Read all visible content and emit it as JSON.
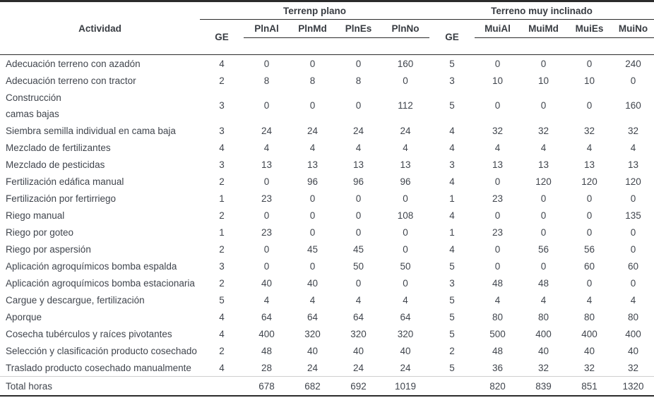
{
  "table": {
    "activity_header": "Actividad",
    "groups": [
      {
        "label": "Terrenp plano",
        "ge": "GE",
        "subcols": [
          "PlnAl",
          "PlnMd",
          "PlnEs",
          "PlnNo"
        ]
      },
      {
        "label": "Terreno muy inclinado",
        "ge": "GE",
        "subcols": [
          "MuiAl",
          "MuiMd",
          "MuiEs",
          "MuiNo"
        ]
      }
    ],
    "rows": [
      {
        "actividad": "Adecuación terreno con azadón",
        "values": [
          "4",
          "0",
          "0",
          "0",
          "160",
          "5",
          "0",
          "0",
          "0",
          "240"
        ]
      },
      {
        "actividad": "Adecuación terreno con tractor",
        "values": [
          "2",
          "8",
          "8",
          "8",
          "0",
          "3",
          "10",
          "10",
          "10",
          "0"
        ]
      },
      {
        "actividad": "Construcción\ncamas bajas",
        "values": [
          "3",
          "0",
          "0",
          "0",
          "112",
          "5",
          "0",
          "0",
          "0",
          "160"
        ],
        "double": true
      },
      {
        "actividad": "Siembra semilla individual en cama baja",
        "values": [
          "3",
          "24",
          "24",
          "24",
          "24",
          "4",
          "32",
          "32",
          "32",
          "32"
        ]
      },
      {
        "actividad": "Mezclado de fertilizantes",
        "values": [
          "4",
          "4",
          "4",
          "4",
          "4",
          "4",
          "4",
          "4",
          "4",
          "4"
        ]
      },
      {
        "actividad": "Mezclado de pesticidas",
        "values": [
          "3",
          "13",
          "13",
          "13",
          "13",
          "3",
          "13",
          "13",
          "13",
          "13"
        ]
      },
      {
        "actividad": "Fertilización edáfica manual",
        "values": [
          "2",
          "0",
          "96",
          "96",
          "96",
          "4",
          "0",
          "120",
          "120",
          "120"
        ]
      },
      {
        "actividad": "Fertilización por fertirriego",
        "values": [
          "1",
          "23",
          "0",
          "0",
          "0",
          "1",
          "23",
          "0",
          "0",
          "0"
        ]
      },
      {
        "actividad": "Riego manual",
        "values": [
          "2",
          "0",
          "0",
          "0",
          "108",
          "4",
          "0",
          "0",
          "0",
          "135"
        ]
      },
      {
        "actividad": "Riego por goteo",
        "values": [
          "1",
          "23",
          "0",
          "0",
          "0",
          "1",
          "23",
          "0",
          "0",
          "0"
        ]
      },
      {
        "actividad": "Riego por aspersión",
        "values": [
          "2",
          "0",
          "45",
          "45",
          "0",
          "4",
          "0",
          "56",
          "56",
          "0"
        ]
      },
      {
        "actividad": "Aplicación agroquímicos bomba espalda",
        "values": [
          "3",
          "0",
          "0",
          "50",
          "50",
          "5",
          "0",
          "0",
          "60",
          "60"
        ]
      },
      {
        "actividad": "Aplicación agroquímicos bomba estacionaria",
        "values": [
          "2",
          "40",
          "40",
          "0",
          "0",
          "3",
          "48",
          "48",
          "0",
          "0"
        ]
      },
      {
        "actividad": "Cargue y descargue, fertilización",
        "values": [
          "5",
          "4",
          "4",
          "4",
          "4",
          "5",
          "4",
          "4",
          "4",
          "4"
        ]
      },
      {
        "actividad": "Aporque",
        "values": [
          "4",
          "64",
          "64",
          "64",
          "64",
          "5",
          "80",
          "80",
          "80",
          "80"
        ]
      },
      {
        "actividad": "Cosecha tubérculos y raíces pivotantes",
        "values": [
          "4",
          "400",
          "320",
          "320",
          "320",
          "5",
          "500",
          "400",
          "400",
          "400"
        ]
      },
      {
        "actividad": "Selección y clasificación producto cosechado",
        "values": [
          "2",
          "48",
          "40",
          "40",
          "40",
          "2",
          "48",
          "40",
          "40",
          "40"
        ]
      },
      {
        "actividad": "Traslado producto cosechado manualmente",
        "values": [
          "4",
          "28",
          "24",
          "24",
          "24",
          "5",
          "36",
          "32",
          "32",
          "32"
        ]
      }
    ],
    "total_row": {
      "label": "Total horas",
      "values": [
        "",
        "678",
        "682",
        "692",
        "1019",
        "",
        "820",
        "839",
        "851",
        "1320"
      ]
    }
  },
  "colors": {
    "text": "#40454d",
    "header_text": "#383c42",
    "border_dark": "#2b2b2b",
    "border_light": "#cfcfcf",
    "background": "#ffffff"
  }
}
